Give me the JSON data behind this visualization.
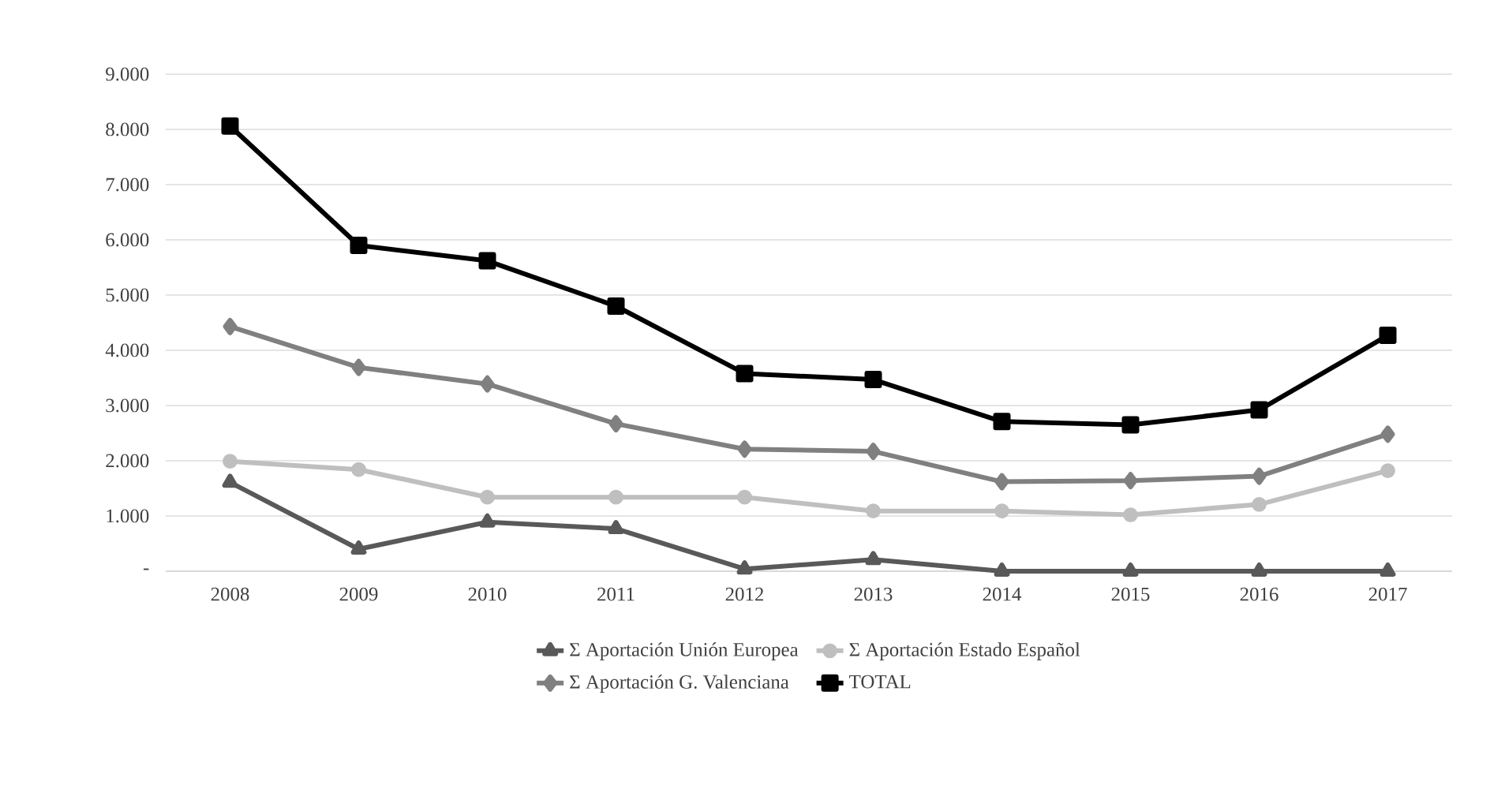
{
  "chart_data": {
    "type": "line",
    "categories": [
      "2008",
      "2009",
      "2010",
      "2011",
      "2012",
      "2013",
      "2014",
      "2015",
      "2016",
      "2017"
    ],
    "series": [
      {
        "name": "Σ Aportación Unión Europea",
        "color": "#595959",
        "marker": "triangle",
        "values": [
          1610,
          400,
          890,
          770,
          40,
          210,
          0,
          0,
          0,
          0
        ]
      },
      {
        "name": "Σ Aportación Estado Español",
        "color": "#bfbfbf",
        "marker": "circle",
        "values": [
          1990,
          1840,
          1340,
          1340,
          1340,
          1090,
          1090,
          1020,
          1210,
          1820
        ]
      },
      {
        "name": "Σ Aportación G. Valenciana",
        "color": "#808080",
        "marker": "diamond",
        "values": [
          4430,
          3690,
          3390,
          2670,
          2210,
          2170,
          1620,
          1640,
          1720,
          2480
        ]
      },
      {
        "name": "TOTAL",
        "color": "#000000",
        "marker": "square",
        "values": [
          8060,
          5900,
          5620,
          4800,
          3580,
          3470,
          2710,
          2650,
          2920,
          4270
        ]
      }
    ],
    "ylim": [
      0,
      9000
    ],
    "yticks": [
      {
        "value": 0,
        "label": "-"
      },
      {
        "value": 1000,
        "label": "1.000"
      },
      {
        "value": 2000,
        "label": "2.000"
      },
      {
        "value": 3000,
        "label": "3.000"
      },
      {
        "value": 4000,
        "label": "4.000"
      },
      {
        "value": 5000,
        "label": "5.000"
      },
      {
        "value": 6000,
        "label": "6.000"
      },
      {
        "value": 7000,
        "label": "7.000"
      },
      {
        "value": 8000,
        "label": "8.000"
      },
      {
        "value": 9000,
        "label": "9.000"
      }
    ],
    "grid": "y",
    "legend": "bottom",
    "line_style": "solid"
  }
}
